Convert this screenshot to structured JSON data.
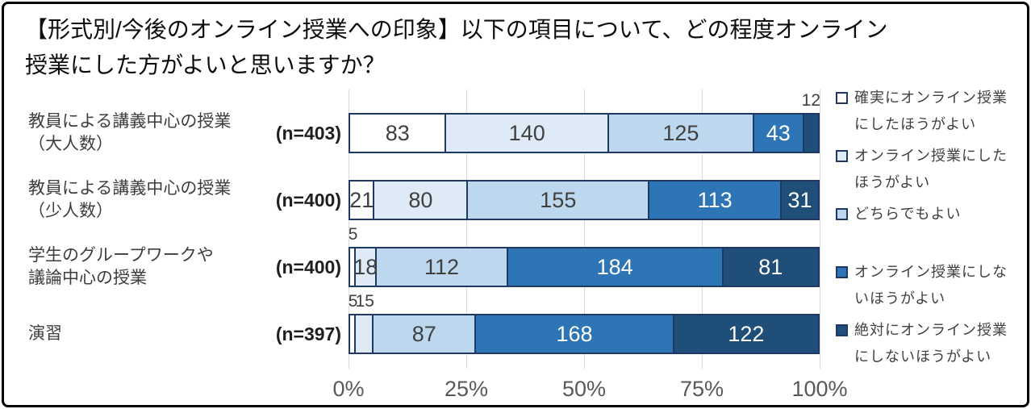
{
  "figure": {
    "title_line1": "【形式別/今後のオンライン授業への印象】以下の項目について、どの程度オンライン",
    "title_line2": "授業にした方がよいと思いますか？"
  },
  "chart_data": {
    "type": "bar",
    "stacked": true,
    "orientation": "horizontal",
    "title": "【形式別/今後のオンライン授業への印象】以下の項目について、どの程度オンライン授業にした方がよいと思いますか？",
    "x_ticks": [
      "0%",
      "25%",
      "50%",
      "75%",
      "100%"
    ],
    "xlim": [
      0,
      100
    ],
    "grid": true,
    "legend_position": "right",
    "categories": [
      {
        "label": "教員による講義中心の授業（大人数）",
        "label_lines": "教員による講義中心の授業\n（大人数）",
        "n_label": "(n=403)",
        "total": 403
      },
      {
        "label": "教員による講義中心の授業（少人数）",
        "label_lines": "教員による講義中心の授業\n（少人数）",
        "n_label": "(n=400)",
        "total": 400
      },
      {
        "label": "学生のグループワークや議論中心の授業",
        "label_lines": "学生のグループワークや\n議論中心の授業",
        "n_label": "(n=400)",
        "total": 400
      },
      {
        "label": "演習",
        "label_lines": "演習",
        "n_label": "(n=397)",
        "total": 397
      }
    ],
    "series": [
      {
        "name": "確実にオンライン授業にしたほうがよい",
        "color": "#FFFFFF",
        "label_color": "#404040",
        "values": [
          83,
          21,
          5,
          5
        ]
      },
      {
        "name": "オンライン授業にしたほうがよい",
        "color": "#DEEBF7",
        "label_color": "#404040",
        "values": [
          140,
          80,
          18,
          15
        ]
      },
      {
        "name": "どちらでもよい",
        "color": "#BDD7EE",
        "label_color": "#404040",
        "values": [
          125,
          155,
          112,
          87
        ]
      },
      {
        "name": "オンライン授業にしないほうがよい",
        "color": "#2E75B6",
        "label_color": "#FFFFFF",
        "values": [
          43,
          113,
          184,
          168
        ]
      },
      {
        "name": "絶対にオンライン授業にしないほうがよい",
        "color": "#1F4E79",
        "label_color": "#FFFFFF",
        "values": [
          12,
          31,
          81,
          122
        ]
      }
    ]
  },
  "legend": {
    "items": [
      {
        "lines": "確実にオンライン授業\nにしたほうがよい",
        "color": "#FFFFFF"
      },
      {
        "lines": "オンライン授業にした\nほうがよい",
        "color": "#DEEBF7"
      },
      {
        "lines": "どちらでもよい",
        "color": "#BDD7EE"
      },
      {
        "lines": "オンライン授業にしな\nいほうがよい",
        "color": "#2E75B6"
      },
      {
        "lines": "絶対にオンライン授業\nにしないほうがよい",
        "color": "#1F4E79"
      }
    ]
  },
  "colors": {
    "bar_border": "#1F3864",
    "gridline": "#D9D9D9",
    "frame_border": "#000000",
    "value_label_dark": "#404040",
    "value_label_light": "#FFFFFF",
    "axis_label": "#595959",
    "legend_text": "#404040"
  }
}
